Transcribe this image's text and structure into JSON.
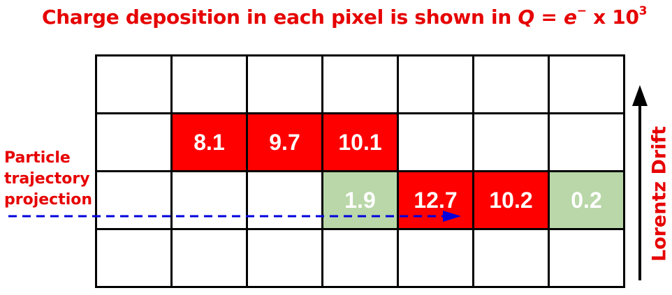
{
  "title": {
    "prefix": "Charge deposition in each pixel is shown in ",
    "q": "Q",
    "eq": " = ",
    "e": "e",
    "minus": "−",
    "times": " x 10",
    "exp": "3"
  },
  "trajectory_label": [
    "Particle",
    "trajectory",
    "projection"
  ],
  "drift_label": "Lorentz Drift",
  "colors": {
    "red": "#ff0000",
    "green": "#b9d7a8",
    "white": "#ffffff",
    "trajectory": "#0000dd",
    "text_red": "#e60000"
  },
  "grid": {
    "rows": 4,
    "cols": 7,
    "cells": [
      [
        "",
        "",
        "",
        "",
        "",
        "",
        ""
      ],
      [
        "",
        "8.1",
        "9.7",
        "10.1",
        "",
        "",
        ""
      ],
      [
        "",
        "",
        "",
        "1.9",
        "12.7",
        "10.2",
        "0.2"
      ],
      [
        "",
        "",
        "",
        "",
        "",
        "",
        ""
      ]
    ],
    "fills": [
      [
        "white",
        "white",
        "white",
        "white",
        "white",
        "white",
        "white"
      ],
      [
        "white",
        "red",
        "red",
        "red",
        "white",
        "white",
        "white"
      ],
      [
        "white",
        "white",
        "white",
        "green",
        "red",
        "red",
        "green"
      ],
      [
        "white",
        "white",
        "white",
        "white",
        "white",
        "white",
        "white"
      ]
    ]
  }
}
